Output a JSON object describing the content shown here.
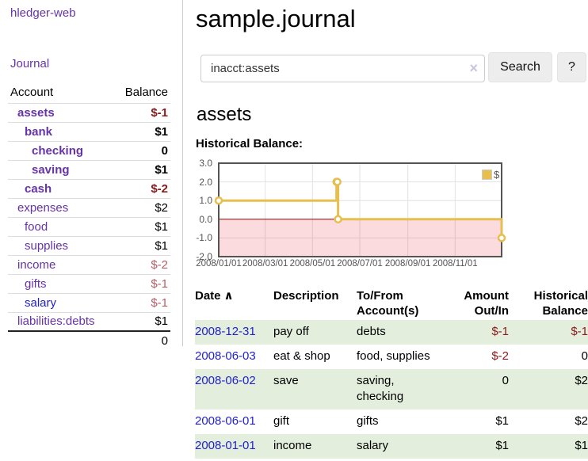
{
  "sidebar": {
    "brand": "hledger-web",
    "nav": {
      "journal": "Journal"
    },
    "accounts_table": {
      "headers": {
        "account": "Account",
        "balance": "Balance"
      },
      "rows": [
        {
          "name": "assets",
          "depth": 1,
          "matched": true,
          "link_color": "purple",
          "balance": "$-1",
          "balance_style": "neg-strong"
        },
        {
          "name": "bank",
          "depth": 2,
          "matched": true,
          "link_color": "purple",
          "balance": "$1",
          "balance_style": "pos"
        },
        {
          "name": "checking",
          "depth": 3,
          "matched": true,
          "link_color": "purple",
          "balance": "0",
          "balance_style": "pos"
        },
        {
          "name": "saving",
          "depth": 3,
          "matched": true,
          "link_color": "purple",
          "balance": "$1",
          "balance_style": "pos"
        },
        {
          "name": "cash",
          "depth": 2,
          "matched": true,
          "link_color": "purple",
          "balance": "$-2",
          "balance_style": "neg-strong"
        },
        {
          "name": "expenses",
          "depth": 1,
          "matched": false,
          "link_color": "purple",
          "balance": "$2",
          "balance_style": "pos"
        },
        {
          "name": "food",
          "depth": 2,
          "matched": false,
          "link_color": "purple",
          "balance": "$1",
          "balance_style": "pos"
        },
        {
          "name": "supplies",
          "depth": 2,
          "matched": false,
          "link_color": "purple",
          "balance": "$1",
          "balance_style": "pos"
        },
        {
          "name": "income",
          "depth": 1,
          "matched": false,
          "link_color": "purple",
          "balance": "$-2",
          "balance_style": "neg-muted"
        },
        {
          "name": "gifts",
          "depth": 2,
          "matched": false,
          "link_color": "purple",
          "balance": "$-1",
          "balance_style": "neg-muted"
        },
        {
          "name": "salary",
          "depth": 2,
          "matched": false,
          "link_color": "blue",
          "balance": "$-1",
          "balance_style": "neg-muted"
        },
        {
          "name": "liabilities:debts",
          "depth": 1,
          "matched": false,
          "link_color": "purple",
          "balance": "$1",
          "balance_style": "pos"
        }
      ],
      "total": "0"
    }
  },
  "header": {
    "title": "sample.journal"
  },
  "search": {
    "value": "inacct:assets",
    "button": "Search",
    "help": "?"
  },
  "icons": {
    "clear": "×",
    "sort_asc": "∧"
  },
  "account_page": {
    "heading": "assets",
    "chart_label": "Historical Balance:"
  },
  "chart_data": {
    "type": "line",
    "step": true,
    "title": "Historical Balance",
    "series": [
      {
        "name": "$",
        "points": [
          [
            "2008-01-01",
            1
          ],
          [
            "2008-06-01",
            2
          ],
          [
            "2008-06-02",
            2
          ],
          [
            "2008-06-03",
            0
          ],
          [
            "2008-12-31",
            -1
          ]
        ]
      }
    ],
    "xlim": [
      "2008-01-01",
      "2008-12-31"
    ],
    "ylim": [
      -2,
      3
    ],
    "x_ticks": [
      "2008/01/01",
      "2008/03/01",
      "2008/05/01",
      "2008/07/01",
      "2008/09/01",
      "2008/11/01"
    ],
    "y_tick_labels": [
      "3.0",
      "2.0",
      "1.0",
      "0.0",
      "-1.0",
      "-2.0"
    ],
    "y_tick_values": [
      3,
      2,
      1,
      0,
      -1,
      -2
    ],
    "grid": true,
    "legend_position": "top-right",
    "colors": {
      "line": "#e6bf4f",
      "marker_fill": "#ffffff",
      "negative_region": "rgba(230,0,20,0.14)",
      "zero_line": "#8b0000",
      "grid_line": "#e2e2e2",
      "plot_border": "#545454"
    }
  },
  "register": {
    "headers": {
      "date": "Date",
      "description": "Description",
      "tofrom": "To/From Account(s)",
      "amount": "Amount Out/In",
      "balance": "Historical Balance"
    },
    "rows": [
      {
        "date": "2008-12-31",
        "description": "pay off",
        "accounts": "debts",
        "amount": "$-1",
        "amount_neg": true,
        "balance": "$-1",
        "balance_neg": true
      },
      {
        "date": "2008-06-03",
        "description": "eat & shop",
        "accounts": "food, supplies",
        "amount": "$-2",
        "amount_neg": true,
        "balance": "0",
        "balance_neg": false
      },
      {
        "date": "2008-06-02",
        "description": "save",
        "accounts": "saving, checking",
        "amount": "0",
        "amount_neg": false,
        "balance": "$2",
        "balance_neg": false
      },
      {
        "date": "2008-06-01",
        "description": "gift",
        "accounts": "gifts",
        "amount": "$1",
        "amount_neg": false,
        "balance": "$2",
        "balance_neg": false
      },
      {
        "date": "2008-01-01",
        "description": "income",
        "accounts": "salary",
        "amount": "$1",
        "amount_neg": false,
        "balance": "$1",
        "balance_neg": false
      }
    ]
  },
  "colors": {
    "link_purple": "#6633aa",
    "link_blue": "#2222cc",
    "negative_strong": "#8b1a1a",
    "negative_muted": "#b55e64",
    "row_highlight_green": "#e3efdc",
    "divider": "#cccccc",
    "button_bg": "#ededed"
  }
}
